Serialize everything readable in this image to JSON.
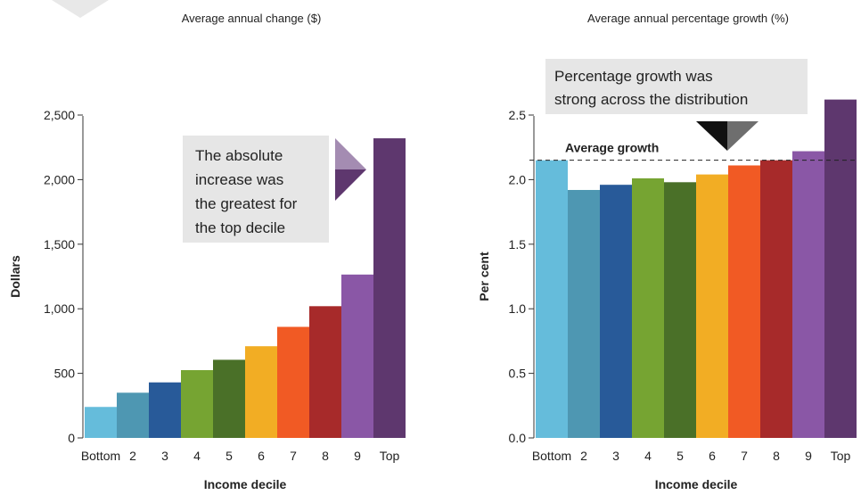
{
  "colors": {
    "deciles": [
      "#65bcdb",
      "#4e97b2",
      "#285a99",
      "#76a432",
      "#4a7028",
      "#f2ad24",
      "#f15a24",
      "#a72a2a",
      "#8a57a6",
      "#5e376e"
    ],
    "annotation_bg": "#e6e6e6",
    "avg_line": "#222222"
  },
  "chart_data": [
    {
      "type": "bar",
      "title": "Average annual change ($)",
      "xlabel": "Income decile",
      "ylabel": "Dollars",
      "categories": [
        "Bottom",
        "2",
        "3",
        "4",
        "5",
        "6",
        "7",
        "8",
        "9",
        "Top"
      ],
      "values": [
        240,
        350,
        430,
        525,
        605,
        710,
        860,
        1020,
        1265,
        2320
      ],
      "ylim": [
        0,
        2500
      ],
      "yticks": [
        {
          "value": 0,
          "label": "0"
        },
        {
          "value": 500,
          "label": "500"
        },
        {
          "value": 1000,
          "label": "1,000"
        },
        {
          "value": 1500,
          "label": "1,500"
        },
        {
          "value": 2000,
          "label": "2,000"
        },
        {
          "value": 2500,
          "label": "2,500"
        }
      ],
      "annotation": {
        "lines": [
          "The absolute",
          "increase was",
          "the greatest for",
          "the top decile"
        ]
      }
    },
    {
      "type": "bar",
      "title": "Average annual percentage growth (%)",
      "xlabel": "Income decile",
      "ylabel": "Per cent",
      "categories": [
        "Bottom",
        "2",
        "3",
        "4",
        "5",
        "6",
        "7",
        "8",
        "9",
        "Top"
      ],
      "values": [
        2.15,
        1.92,
        1.96,
        2.01,
        1.98,
        2.04,
        2.11,
        2.15,
        2.22,
        2.62
      ],
      "ylim": [
        0,
        2.5
      ],
      "yticks": [
        {
          "value": 0,
          "label": "0.0"
        },
        {
          "value": 0.5,
          "label": "0.5"
        },
        {
          "value": 1.0,
          "label": "1.0"
        },
        {
          "value": 1.5,
          "label": "1.5"
        },
        {
          "value": 2.0,
          "label": "2.0"
        },
        {
          "value": 2.5,
          "label": "2.5"
        }
      ],
      "reference_line": {
        "label": "Average growth",
        "value": 2.15
      },
      "annotation": {
        "lines": [
          "Percentage growth was",
          "strong across the distribution"
        ]
      }
    }
  ]
}
